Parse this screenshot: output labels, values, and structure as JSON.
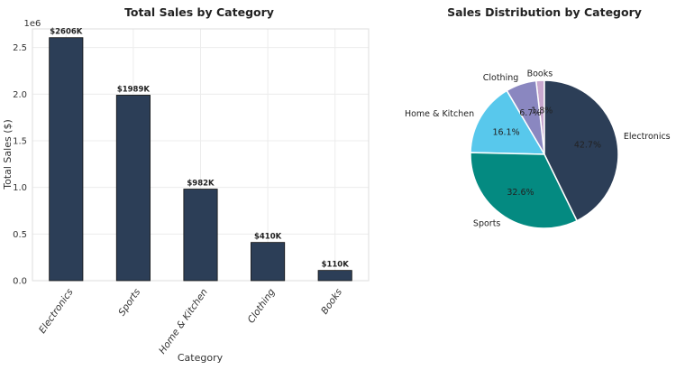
{
  "chart_data": [
    {
      "type": "bar",
      "title": "Total Sales by Category",
      "xlabel": "Category",
      "ylabel": "Total Sales ($)",
      "offset_label": "1e6",
      "categories": [
        "Electronics",
        "Sports",
        "Home & Kitchen",
        "Clothing",
        "Books"
      ],
      "values": [
        2606000,
        1989000,
        982000,
        410000,
        110000
      ],
      "data_labels": [
        "$2606K",
        "$1989K",
        "$982K",
        "$410K",
        "$110K"
      ],
      "ylim": [
        0,
        2700000
      ],
      "yticks": [
        0,
        500000,
        1000000,
        1500000,
        2000000,
        2500000
      ],
      "ytick_labels": [
        "0.0",
        "0.5",
        "1.0",
        "1.5",
        "2.0",
        "2.5"
      ],
      "grid": true,
      "bar_color": "#2c3e57"
    },
    {
      "type": "pie",
      "title": "Sales Distribution by Category",
      "labels": [
        "Books",
        "Clothing",
        "Home & Kitchen",
        "Sports",
        "Electronics"
      ],
      "values": [
        1.8,
        6.7,
        16.1,
        32.6,
        42.7
      ],
      "pct_labels": [
        "1.8%",
        "6.7%",
        "16.1%",
        "32.6%",
        "42.7%"
      ],
      "colors": [
        "#c9a8cf",
        "#8a87c0",
        "#58c8ec",
        "#048a81",
        "#2c3e57"
      ]
    }
  ]
}
